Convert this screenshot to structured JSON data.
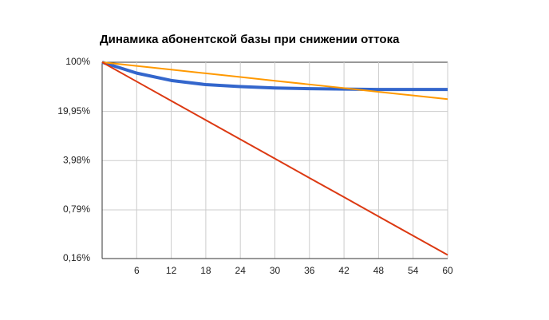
{
  "chart_data": {
    "type": "line",
    "title": "Динамика абонентской базы при снижении оттока",
    "x": [
      0,
      6,
      12,
      18,
      24,
      30,
      36,
      42,
      48,
      54,
      60
    ],
    "series": [
      {
        "color": "#3366cc",
        "width": 4,
        "values": [
          100,
          70,
          55,
          48,
          45,
          43,
          42,
          41.5,
          41,
          41,
          41
        ]
      },
      {
        "color": "#ff9900",
        "width": 2,
        "values": [
          100,
          88.6,
          78.5,
          69.5,
          61.6,
          54.5,
          48.3,
          42.8,
          37.9,
          33.6,
          29.8
        ]
      },
      {
        "color": "#dc3912",
        "width": 2,
        "values": [
          100,
          53.1,
          28.2,
          15.0,
          7.98,
          4.24,
          2.25,
          1.2,
          0.636,
          0.338,
          0.18
        ]
      }
    ],
    "xlim": [
      0,
      60
    ],
    "xticks": [
      6,
      12,
      18,
      24,
      30,
      36,
      42,
      48,
      54,
      60
    ],
    "ylim": [
      0.16,
      100
    ],
    "ylog": true,
    "yticks": [
      {
        "value": 100,
        "label": "100%"
      },
      {
        "value": 19.95,
        "label": "19,95%"
      },
      {
        "value": 3.98,
        "label": "3,98%"
      },
      {
        "value": 0.79,
        "label": "0,79%"
      },
      {
        "value": 0.16,
        "label": "0,16%"
      }
    ],
    "grid": true
  }
}
